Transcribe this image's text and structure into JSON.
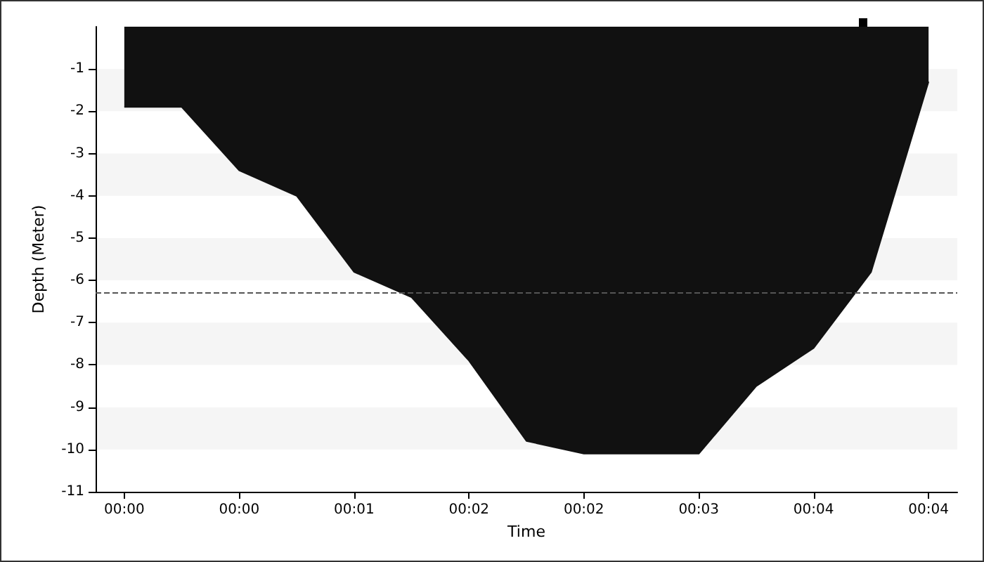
{
  "chart_data": {
    "type": "area",
    "xlabel": "Time",
    "ylabel": "Depth (Meter)",
    "categories": [
      "00:00",
      null,
      "00:00",
      null,
      "00:01",
      null,
      "00:02",
      null,
      "00:02",
      null,
      "00:03",
      null,
      "00:04",
      null,
      "00:04"
    ],
    "series": [
      {
        "color": "#111111",
        "values": [
          -1.9,
          -1.9,
          -3.4,
          -4.0,
          -5.8,
          -6.4,
          -7.9,
          -9.8,
          -10.1,
          -10.1,
          -10.1,
          -8.5,
          -7.6,
          -5.8,
          -1.3
        ]
      }
    ],
    "ylim": [
      -11,
      0
    ],
    "yticks": [
      -11,
      -10,
      -9,
      -8,
      -7,
      -6,
      -5,
      -4,
      -3,
      -2,
      -1
    ],
    "ref_lines": [
      {
        "axis": "y",
        "value": -6.3,
        "color": "#555555",
        "line_style": "dashed"
      }
    ],
    "bands": [
      {
        "axis": "y",
        "from": -2,
        "to": -1,
        "color": "#f5f5f5"
      },
      {
        "axis": "y",
        "from": -4,
        "to": -3,
        "color": "#f5f5f5"
      },
      {
        "axis": "y",
        "from": -6,
        "to": -5,
        "color": "#f5f5f5"
      },
      {
        "axis": "y",
        "from": -8,
        "to": -7,
        "color": "#f5f5f5"
      },
      {
        "axis": "y",
        "from": -10,
        "to": -9,
        "color": "#f5f5f5"
      }
    ],
    "marker": "none"
  }
}
